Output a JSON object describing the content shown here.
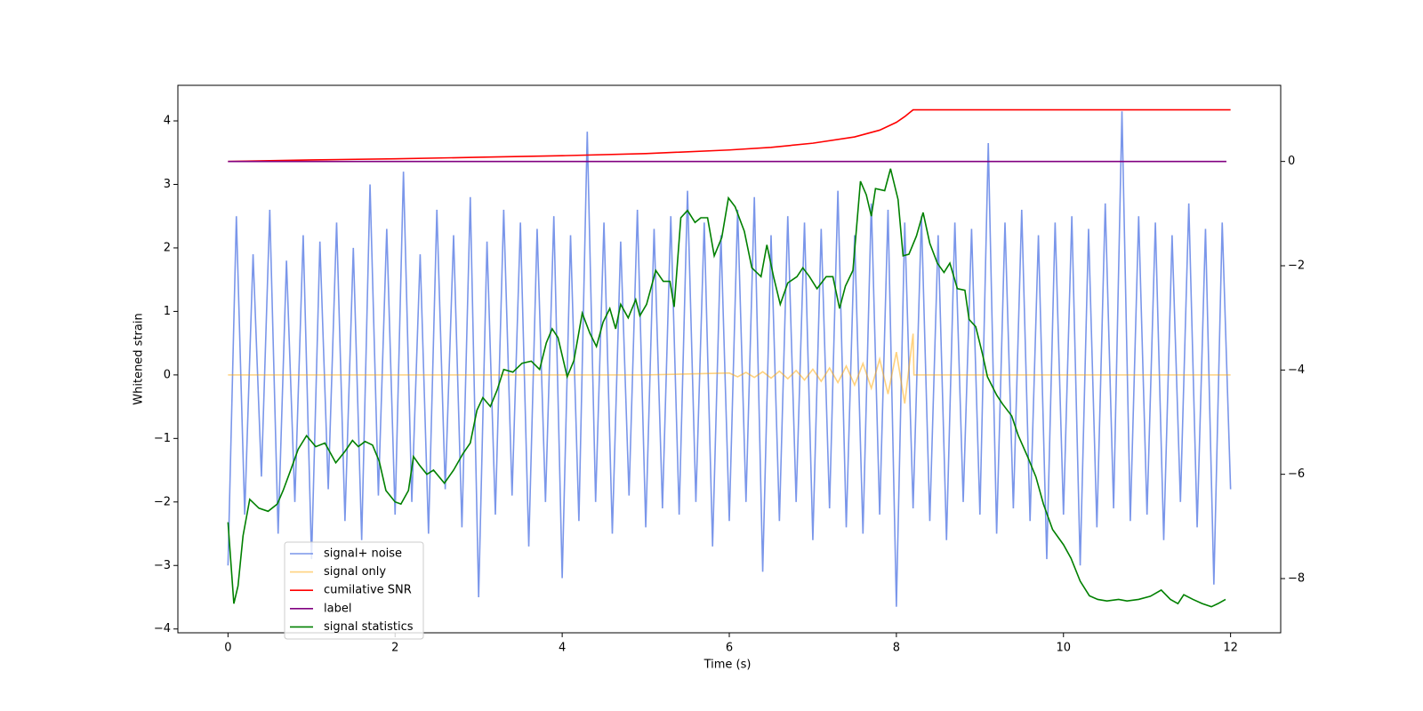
{
  "chart_data": {
    "type": "line",
    "xlabel": "Time (s)",
    "ylabel": "Whitened strain",
    "xlim": [
      -0.6,
      12.6
    ],
    "ylim": [
      -4.06,
      4.56
    ],
    "y2lim": [
      -9.04,
      1.46
    ],
    "xticks": [
      0,
      2,
      4,
      6,
      8,
      10,
      12
    ],
    "yticks": [
      {
        "value": -4,
        "label": "−4"
      },
      {
        "value": -3,
        "label": "−3"
      },
      {
        "value": -2,
        "label": "−2"
      },
      {
        "value": -1,
        "label": "−1"
      },
      0,
      1,
      2,
      3,
      4
    ],
    "y2ticks": [
      {
        "value": -8,
        "label": "−8"
      },
      {
        "value": -6,
        "label": "−6"
      },
      {
        "value": -4,
        "label": "−4"
      },
      {
        "value": -2,
        "label": "−2"
      },
      0
    ],
    "legend": "lower left",
    "series": [
      {
        "name": "signal+ noise",
        "color": "#4169e1",
        "alpha": 0.7,
        "x": [
          0,
          0.1,
          0.2,
          0.3,
          0.4,
          0.5,
          0.6,
          0.7,
          0.8,
          0.9,
          1,
          1.1,
          1.2,
          1.3,
          1.4,
          1.5,
          1.6,
          1.7,
          1.8,
          1.9,
          2,
          2.1,
          2.2,
          2.3,
          2.4,
          2.5,
          2.6,
          2.7,
          2.8,
          2.9,
          3,
          3.1,
          3.2,
          3.3,
          3.4,
          3.5,
          3.6,
          3.7,
          3.8,
          3.9,
          4,
          4.1,
          4.2,
          4.3,
          4.4,
          4.5,
          4.6,
          4.7,
          4.8,
          4.9,
          5,
          5.1,
          5.2,
          5.3,
          5.4,
          5.5,
          5.6,
          5.7,
          5.8,
          5.9,
          6,
          6.1,
          6.2,
          6.3,
          6.4,
          6.5,
          6.6,
          6.7,
          6.8,
          6.9,
          7,
          7.1,
          7.2,
          7.3,
          7.4,
          7.5,
          7.6,
          7.7,
          7.8,
          7.9,
          8,
          8.1,
          8.2,
          8.3,
          8.4,
          8.5,
          8.6,
          8.7,
          8.8,
          8.9,
          9,
          9.1,
          9.2,
          9.3,
          9.4,
          9.5,
          9.6,
          9.7,
          9.8,
          9.9,
          10,
          10.1,
          10.2,
          10.3,
          10.4,
          10.5,
          10.6,
          10.7,
          10.8,
          10.9,
          11,
          11.1,
          11.2,
          11.3,
          11.4,
          11.5,
          11.6,
          11.7,
          11.8,
          11.9,
          12
        ],
        "values": [
          -3.0,
          2.5,
          -2.2,
          1.9,
          -1.6,
          2.6,
          -2.5,
          1.8,
          -2.0,
          2.2,
          -2.9,
          2.1,
          -1.8,
          2.4,
          -2.3,
          2.0,
          -2.6,
          3.0,
          -1.9,
          2.3,
          -2.2,
          3.2,
          -2.0,
          1.9,
          -2.5,
          2.6,
          -1.8,
          2.2,
          -2.4,
          2.8,
          -3.5,
          2.1,
          -2.2,
          2.6,
          -1.9,
          2.4,
          -2.7,
          2.3,
          -2.0,
          2.5,
          -3.2,
          2.2,
          -2.3,
          3.83,
          -2.0,
          2.4,
          -2.5,
          2.1,
          -1.9,
          2.6,
          -2.4,
          2.3,
          -2.1,
          2.5,
          -2.2,
          2.9,
          -2.0,
          2.4,
          -2.7,
          2.2,
          -2.3,
          2.6,
          -2.0,
          2.8,
          -3.1,
          2.2,
          -2.3,
          2.5,
          -2.0,
          2.4,
          -2.6,
          2.3,
          -2.1,
          2.9,
          -2.4,
          2.2,
          -2.5,
          2.7,
          -2.2,
          2.6,
          -3.65,
          2.4,
          -2.1,
          2.5,
          -2.3,
          2.2,
          -2.6,
          2.4,
          -2.0,
          2.3,
          -2.2,
          3.65,
          -2.5,
          2.4,
          -2.1,
          2.6,
          -2.3,
          2.2,
          -2.9,
          2.4,
          -2.2,
          2.5,
          -3.0,
          2.3,
          -2.4,
          2.7,
          -2.1,
          4.15,
          -2.3,
          2.5,
          -2.2,
          2.4,
          -2.6,
          2.2,
          -2.0,
          2.7,
          -2.4,
          2.3,
          -3.3,
          2.4,
          -1.8
        ]
      },
      {
        "name": "signal only",
        "color": "#ffa500",
        "alpha": 0.5,
        "x": [
          0,
          1,
          2,
          3,
          4,
          5,
          6.0,
          6.1,
          6.2,
          6.3,
          6.4,
          6.5,
          6.6,
          6.7,
          6.8,
          6.9,
          7.0,
          7.1,
          7.2,
          7.3,
          7.4,
          7.5,
          7.6,
          7.7,
          7.8,
          7.9,
          8.0,
          8.1,
          8.2,
          8.21,
          12
        ],
        "values": [
          0,
          0,
          0,
          0,
          0,
          0,
          0.03,
          -0.03,
          0.04,
          -0.04,
          0.05,
          -0.05,
          0.06,
          -0.06,
          0.07,
          -0.08,
          0.09,
          -0.1,
          0.11,
          -0.12,
          0.14,
          -0.16,
          0.18,
          -0.21,
          0.25,
          -0.3,
          0.36,
          -0.45,
          0.65,
          0,
          0
        ]
      },
      {
        "name": "cumilative SNR",
        "color": "#ff0000",
        "axis": "y2",
        "x": [
          0,
          1,
          2,
          3,
          4,
          5,
          6,
          6.5,
          7,
          7.5,
          7.8,
          8.0,
          8.1,
          8.2,
          12
        ],
        "values": [
          0,
          0.03,
          0.05,
          0.08,
          0.11,
          0.15,
          0.22,
          0.27,
          0.35,
          0.47,
          0.6,
          0.75,
          0.86,
          0.99,
          0.99
        ]
      },
      {
        "name": "label",
        "color": "#800080",
        "axis": "y2",
        "x": [
          0,
          11.95
        ],
        "values": [
          0,
          0
        ]
      },
      {
        "name": "signal statistics",
        "color": "#008000",
        "axis": "y2",
        "x": [
          0,
          0.07,
          0.12,
          0.18,
          0.26,
          0.37,
          0.48,
          0.59,
          0.66,
          0.75,
          0.84,
          0.94,
          1.05,
          1.16,
          1.29,
          1.4,
          1.49,
          1.56,
          1.64,
          1.73,
          1.81,
          1.89,
          2.0,
          2.07,
          2.16,
          2.22,
          2.29,
          2.38,
          2.46,
          2.59,
          2.7,
          2.81,
          2.9,
          2.98,
          3.05,
          3.14,
          3.22,
          3.3,
          3.41,
          3.52,
          3.63,
          3.73,
          3.81,
          3.88,
          3.95,
          4.06,
          4.14,
          4.24,
          4.33,
          4.41,
          4.49,
          4.57,
          4.64,
          4.7,
          4.79,
          4.88,
          4.93,
          5.01,
          5.12,
          5.21,
          5.29,
          5.34,
          5.42,
          5.5,
          5.59,
          5.66,
          5.74,
          5.82,
          5.91,
          5.99,
          6.07,
          6.18,
          6.27,
          6.38,
          6.45,
          6.53,
          6.61,
          6.7,
          6.81,
          6.88,
          6.96,
          7.05,
          7.16,
          7.24,
          7.32,
          7.39,
          7.48,
          7.57,
          7.64,
          7.7,
          7.75,
          7.86,
          7.93,
          8.02,
          8.08,
          8.15,
          8.24,
          8.32,
          8.4,
          8.49,
          8.57,
          8.64,
          8.73,
          8.82,
          8.87,
          8.95,
          9.03,
          9.09,
          9.2,
          9.27,
          9.38,
          9.46,
          9.57,
          9.67,
          9.76,
          9.87,
          10.0,
          10.09,
          10.2,
          10.31,
          10.41,
          10.52,
          10.66,
          10.76,
          10.9,
          11.04,
          11.17,
          11.28,
          11.37,
          11.44,
          11.55,
          11.66,
          11.77,
          11.85,
          11.94
        ],
        "values": [
          -6.92,
          -8.48,
          -8.14,
          -7.18,
          -6.48,
          -6.65,
          -6.71,
          -6.57,
          -6.31,
          -5.92,
          -5.52,
          -5.26,
          -5.47,
          -5.4,
          -5.78,
          -5.56,
          -5.35,
          -5.47,
          -5.37,
          -5.44,
          -5.75,
          -6.31,
          -6.53,
          -6.57,
          -6.31,
          -5.66,
          -5.82,
          -6.0,
          -5.92,
          -6.17,
          -5.92,
          -5.61,
          -5.4,
          -4.77,
          -4.53,
          -4.7,
          -4.39,
          -3.99,
          -4.04,
          -3.87,
          -3.83,
          -3.99,
          -3.48,
          -3.21,
          -3.38,
          -4.13,
          -3.82,
          -2.91,
          -3.29,
          -3.55,
          -3.08,
          -2.82,
          -3.21,
          -2.74,
          -3.0,
          -2.65,
          -2.96,
          -2.74,
          -2.09,
          -2.3,
          -2.3,
          -2.79,
          -1.08,
          -0.94,
          -1.17,
          -1.08,
          -1.08,
          -1.81,
          -1.46,
          -0.7,
          -0.87,
          -1.34,
          -2.04,
          -2.21,
          -1.6,
          -2.21,
          -2.74,
          -2.33,
          -2.21,
          -2.04,
          -2.21,
          -2.44,
          -2.21,
          -2.21,
          -2.82,
          -2.39,
          -2.09,
          -0.38,
          -0.64,
          -1.05,
          -0.52,
          -0.56,
          -0.14,
          -0.73,
          -1.81,
          -1.78,
          -1.43,
          -0.98,
          -1.57,
          -1.95,
          -2.13,
          -1.95,
          -2.44,
          -2.47,
          -3.03,
          -3.17,
          -3.69,
          -4.13,
          -4.48,
          -4.65,
          -4.88,
          -5.26,
          -5.66,
          -6.05,
          -6.57,
          -7.06,
          -7.35,
          -7.61,
          -8.05,
          -8.33,
          -8.4,
          -8.43,
          -8.4,
          -8.43,
          -8.4,
          -8.34,
          -8.22,
          -8.4,
          -8.48,
          -8.31,
          -8.4,
          -8.48,
          -8.54,
          -8.48,
          -8.4
        ]
      }
    ]
  }
}
